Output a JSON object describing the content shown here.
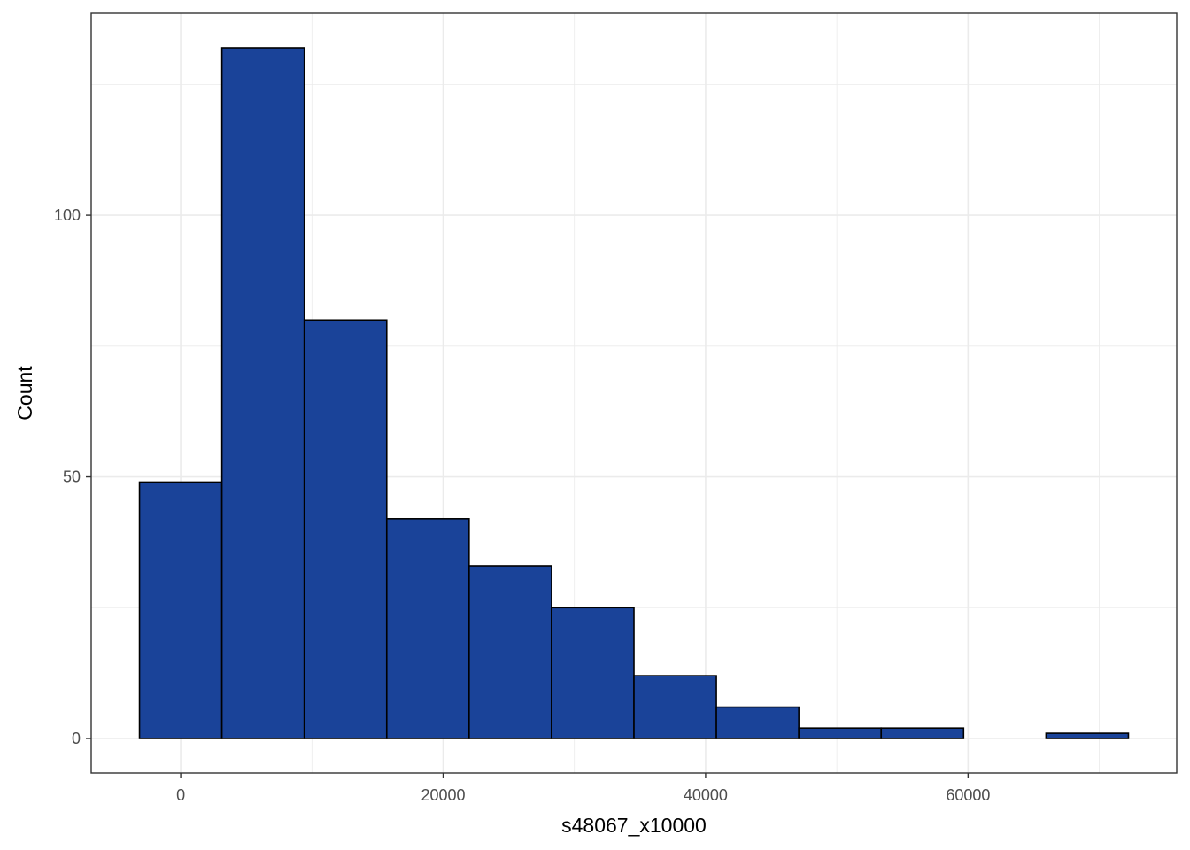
{
  "chart_data": {
    "type": "bar",
    "subtype": "histogram",
    "title": "",
    "xlabel": "s48067_x10000",
    "ylabel": "Count",
    "bins": [
      {
        "x_start": -3140,
        "x_end": 3140,
        "count": 49
      },
      {
        "x_start": 3140,
        "x_end": 9420,
        "count": 132
      },
      {
        "x_start": 9420,
        "x_end": 15700,
        "count": 80
      },
      {
        "x_start": 15700,
        "x_end": 21980,
        "count": 42
      },
      {
        "x_start": 21980,
        "x_end": 28260,
        "count": 33
      },
      {
        "x_start": 28260,
        "x_end": 34540,
        "count": 25
      },
      {
        "x_start": 34540,
        "x_end": 40820,
        "count": 12
      },
      {
        "x_start": 40820,
        "x_end": 47100,
        "count": 6
      },
      {
        "x_start": 47100,
        "x_end": 53380,
        "count": 2
      },
      {
        "x_start": 53380,
        "x_end": 59660,
        "count": 2
      },
      {
        "x_start": 59660,
        "x_end": 65940,
        "count": 0
      },
      {
        "x_start": 65940,
        "x_end": 72220,
        "count": 1
      }
    ],
    "xlim": [
      -6820,
      75900
    ],
    "ylim": [
      -6.6,
      138.6
    ],
    "x_ticks": [
      0,
      20000,
      40000,
      60000
    ],
    "x_tick_labels": [
      "0",
      "20000",
      "40000",
      "60000"
    ],
    "x_minor_ticks": [
      10000,
      30000,
      50000,
      70000
    ],
    "y_ticks": [
      0,
      50,
      100
    ],
    "y_tick_labels": [
      "0",
      "50",
      "100"
    ],
    "y_minor_ticks": [
      25,
      75,
      125
    ],
    "grid": true,
    "legend": "none",
    "colors": {
      "bar_fill": "#1a4399",
      "bar_outline": "#000000",
      "grid": "#ebebeb",
      "panel_border": "#333333",
      "tick_label": "#4d4d4d",
      "axis_title": "#000000"
    }
  }
}
